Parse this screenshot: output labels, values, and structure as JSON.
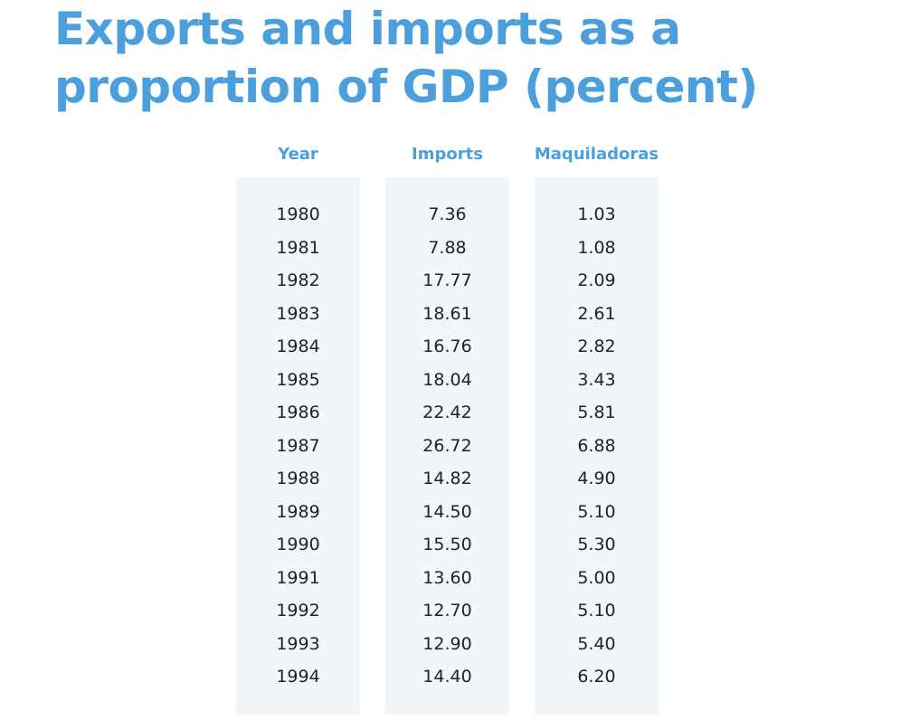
{
  "title": "Exports and imports as a proportion of GDP (percent)",
  "colors": {
    "accent": "#4a9fdc",
    "column_fill": "#f1f6fb",
    "text": "#222222"
  },
  "chart_data": {
    "type": "table",
    "title": "Exports and imports as a proportion of GDP (percent)",
    "columns": [
      "Year",
      "Imports",
      "Maquiladoras"
    ],
    "rows": [
      [
        "1980",
        "7.36",
        "1.03"
      ],
      [
        "1981",
        "7.88",
        "1.08"
      ],
      [
        "1982",
        "17.77",
        "2.09"
      ],
      [
        "1983",
        "18.61",
        "2.61"
      ],
      [
        "1984",
        "16.76",
        "2.82"
      ],
      [
        "1985",
        "18.04",
        "3.43"
      ],
      [
        "1986",
        "22.42",
        "5.81"
      ],
      [
        "1987",
        "26.72",
        "6.88"
      ],
      [
        "1988",
        "14.82",
        "4.90"
      ],
      [
        "1989",
        "14.50",
        "5.10"
      ],
      [
        "1990",
        "15.50",
        "5.30"
      ],
      [
        "1991",
        "13.60",
        "5.00"
      ],
      [
        "1992",
        "12.70",
        "5.10"
      ],
      [
        "1993",
        "12.90",
        "5.40"
      ],
      [
        "1994",
        "14.40",
        "6.20"
      ]
    ]
  }
}
